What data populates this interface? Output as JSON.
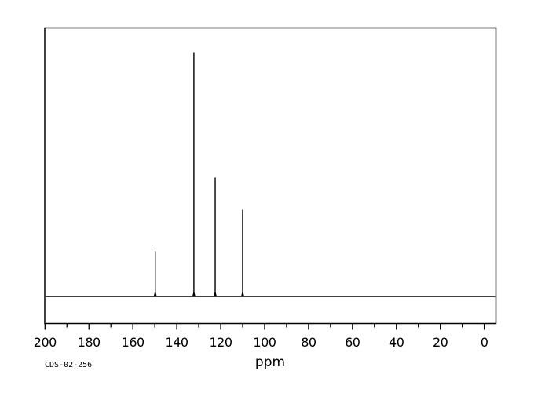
{
  "meta": {
    "background_color": "#ffffff",
    "line_color": "#000000"
  },
  "labels": {
    "sample_id": "CDS-02-256",
    "x_axis_title": "ppm"
  },
  "chart_data": {
    "type": "line",
    "subtype": "nmr-spectrum",
    "title": "",
    "xlabel": "ppm",
    "ylabel": "",
    "annotation": "CDS-02-256",
    "x_axis": {
      "min": 0,
      "max": 200,
      "reversed": true,
      "major_tick_step": 20,
      "minor_tick_step": 10,
      "tick_labels": [
        "200",
        "180",
        "160",
        "140",
        "120",
        "100",
        "80",
        "60",
        "40",
        "20",
        "0"
      ]
    },
    "y_axis": {
      "min": 0,
      "max": 1.1,
      "ticks_visible": false
    },
    "grid": false,
    "legend": false,
    "peaks": [
      {
        "ppm": 149.8,
        "intensity": 0.185
      },
      {
        "ppm": 132.2,
        "intensity": 1.0
      },
      {
        "ppm": 122.5,
        "intensity": 0.488
      },
      {
        "ppm": 110.0,
        "intensity": 0.356
      }
    ]
  }
}
